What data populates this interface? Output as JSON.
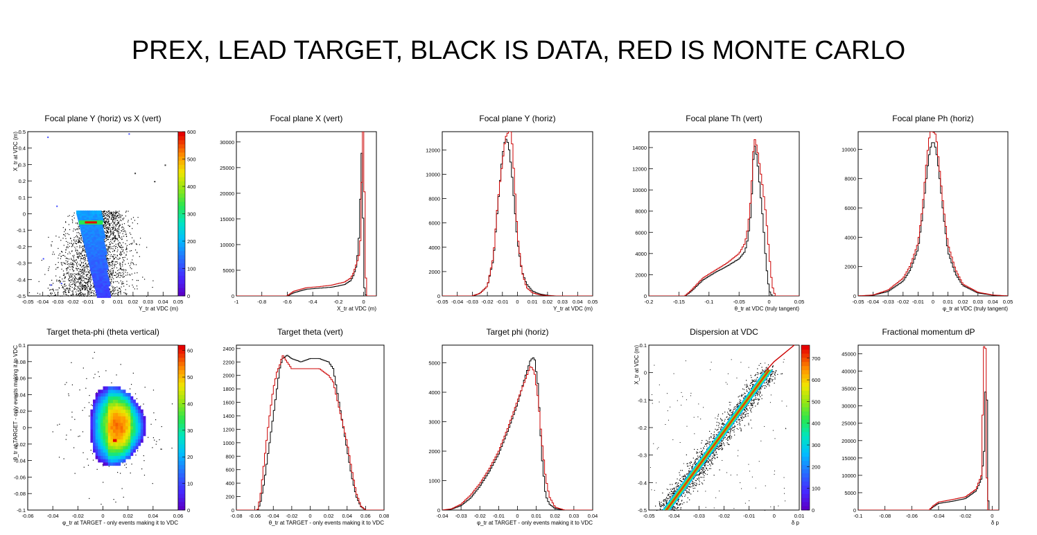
{
  "page": {
    "title": "PREX, LEAD TARGET, BLACK IS DATA, RED IS MONTE CARLO",
    "colors": {
      "data": "#000000",
      "monte_carlo": "#cc0000",
      "frame": "#000000"
    }
  },
  "chart_data": [
    {
      "id": "fp-y-vs-x",
      "type": "heatmap",
      "title": "Focal plane Y (horiz) vs X (vert)",
      "xlabel": "Y_tr at VDC (m)",
      "ylabel": "X_tr at VDC (m)",
      "xlim": [
        -0.05,
        0.05
      ],
      "ylim": [
        -0.5,
        0.5
      ],
      "xticks": [
        -0.05,
        -0.04,
        -0.03,
        -0.02,
        -0.01,
        0,
        0.01,
        0.02,
        0.03,
        0.04,
        0.05
      ],
      "yticks": [
        -0.5,
        -0.4,
        -0.3,
        -0.2,
        -0.1,
        0,
        0.1,
        0.2,
        0.3,
        0.4,
        0.5
      ],
      "zlim": [
        0,
        600
      ],
      "zticks": [
        0,
        100,
        200,
        300,
        400,
        500,
        600
      ],
      "band": [
        [
          -0.01,
          -0.05,
          0.004
        ],
        [
          -0.008,
          -0.15,
          0.005
        ],
        [
          -0.006,
          -0.25,
          0.005
        ],
        [
          -0.004,
          -0.35,
          0.005
        ],
        [
          -0.002,
          -0.45,
          0.005
        ],
        [
          0.0,
          -0.5,
          0.005
        ]
      ],
      "hotspot": [
        -0.008,
        -0.05,
        600
      ],
      "outliers": [
        [
          -0.037,
          0.47
        ],
        [
          0.017,
          0.49
        ],
        [
          0.021,
          0.25
        ],
        [
          0.034,
          0.2
        ],
        [
          0.041,
          0.3
        ],
        [
          -0.031,
          0.05
        ],
        [
          -0.035,
          -0.43
        ],
        [
          -0.028,
          -0.42
        ],
        [
          -0.04,
          -0.27
        ]
      ]
    },
    {
      "id": "fp-x",
      "type": "line",
      "title": "Focal plane X (vert)",
      "xlabel": "X_tr at VDC (m)",
      "xlim": [
        -1,
        0.1
      ],
      "ylim": [
        0,
        32000
      ],
      "xticks": [
        -1,
        -0.8,
        -0.6,
        -0.4,
        -0.2,
        0
      ],
      "yticks": [
        0,
        5000,
        10000,
        15000,
        20000,
        25000,
        30000
      ],
      "series": [
        {
          "color": "#000000",
          "x": [
            -1,
            -0.6,
            -0.55,
            -0.45,
            -0.35,
            -0.25,
            -0.15,
            -0.1,
            -0.08,
            -0.06,
            -0.05,
            -0.04,
            -0.03,
            -0.02,
            -0.01,
            0,
            0.01,
            0.02,
            0.1
          ],
          "y": [
            0,
            0,
            600,
            1300,
            1500,
            1700,
            2200,
            3000,
            4000,
            5500,
            7500,
            10000,
            15000,
            26000,
            30000,
            3000,
            800,
            0,
            0
          ]
        },
        {
          "color": "#cc0000",
          "x": [
            -1,
            -0.6,
            -0.55,
            -0.45,
            -0.35,
            -0.25,
            -0.15,
            -0.1,
            -0.08,
            -0.06,
            -0.04,
            -0.03,
            -0.02,
            -0.01,
            0,
            0.01,
            0.02,
            0.1
          ],
          "y": [
            0,
            0,
            900,
            1600,
            1800,
            2100,
            2700,
            3500,
            4500,
            6000,
            7500,
            9000,
            14000,
            32000,
            32000,
            14000,
            0,
            0
          ]
        }
      ]
    },
    {
      "id": "fp-y",
      "type": "line",
      "title": "Focal plane Y (horiz)",
      "xlabel": "Y_tr at VDC (m)",
      "xlim": [
        -0.05,
        0.05
      ],
      "ylim": [
        0,
        13500
      ],
      "xticks": [
        -0.05,
        -0.04,
        -0.03,
        -0.02,
        -0.01,
        0,
        0.01,
        0.02,
        0.03,
        0.04,
        0.05
      ],
      "yticks": [
        0,
        2000,
        4000,
        6000,
        8000,
        10000,
        12000
      ],
      "series": [
        {
          "color": "#000000",
          "x": [
            -0.05,
            -0.03,
            -0.025,
            -0.02,
            -0.016,
            -0.013,
            -0.01,
            -0.008,
            -0.006,
            -0.004,
            -0.002,
            0,
            0.003,
            0.006,
            0.01,
            0.015,
            0.02,
            0.025,
            0.05
          ],
          "y": [
            0,
            0,
            200,
            800,
            3000,
            7500,
            11500,
            13000,
            12500,
            10500,
            7500,
            4500,
            2000,
            1000,
            400,
            150,
            50,
            0,
            0
          ]
        },
        {
          "color": "#cc0000",
          "x": [
            -0.05,
            -0.03,
            -0.025,
            -0.02,
            -0.016,
            -0.013,
            -0.01,
            -0.008,
            -0.006,
            -0.004,
            -0.002,
            0,
            0.003,
            0.006,
            0.01,
            0.015,
            0.02,
            0.025,
            0.05
          ],
          "y": [
            0,
            0,
            200,
            800,
            3200,
            7800,
            11000,
            13000,
            13500,
            13500,
            9500,
            5000,
            2000,
            700,
            250,
            80,
            20,
            0,
            0
          ]
        }
      ]
    },
    {
      "id": "fp-th",
      "type": "line",
      "title": "Focal plane Th (vert)",
      "xlabel": "θ_tr at VDC (truly tangent)",
      "xlim": [
        -0.2,
        0.05
      ],
      "ylim": [
        0,
        15500
      ],
      "xticks": [
        -0.2,
        -0.15,
        -0.1,
        -0.05,
        0,
        0.05
      ],
      "yticks": [
        0,
        2000,
        4000,
        6000,
        8000,
        10000,
        12000,
        14000
      ],
      "series": [
        {
          "color": "#000000",
          "x": [
            -0.2,
            -0.14,
            -0.13,
            -0.11,
            -0.09,
            -0.07,
            -0.05,
            -0.04,
            -0.035,
            -0.03,
            -0.025,
            -0.02,
            -0.015,
            -0.01,
            -0.005,
            0,
            0.005,
            0.05
          ],
          "y": [
            0,
            0,
            400,
            1500,
            2200,
            2800,
            3500,
            4200,
            5500,
            8000,
            14500,
            13000,
            10000,
            7000,
            3000,
            500,
            0,
            0
          ]
        },
        {
          "color": "#cc0000",
          "x": [
            -0.2,
            -0.14,
            -0.13,
            -0.11,
            -0.09,
            -0.07,
            -0.05,
            -0.04,
            -0.035,
            -0.03,
            -0.025,
            -0.02,
            -0.015,
            -0.01,
            -0.005,
            0,
            0.005,
            0.01,
            0.05
          ],
          "y": [
            0,
            0,
            500,
            1700,
            2400,
            3100,
            4000,
            5000,
            6500,
            9500,
            15000,
            14000,
            12000,
            10000,
            7500,
            4000,
            1000,
            0,
            0
          ]
        }
      ]
    },
    {
      "id": "fp-ph",
      "type": "line",
      "title": "Focal plane Ph (horiz)",
      "xlabel": "φ_tr at VDC (truly tangent)",
      "xlim": [
        -0.05,
        0.05
      ],
      "ylim": [
        0,
        11200
      ],
      "xticks": [
        -0.05,
        -0.04,
        -0.03,
        -0.02,
        -0.01,
        0,
        0.01,
        0.02,
        0.03,
        0.04,
        0.05
      ],
      "yticks": [
        0,
        2000,
        4000,
        6000,
        8000,
        10000
      ],
      "series": [
        {
          "color": "#000000",
          "x": [
            -0.05,
            -0.04,
            -0.03,
            -0.02,
            -0.015,
            -0.01,
            -0.007,
            -0.004,
            -0.002,
            0,
            0.002,
            0.004,
            0.007,
            0.01,
            0.015,
            0.02,
            0.03,
            0.04,
            0.05
          ],
          "y": [
            0,
            50,
            300,
            1000,
            1800,
            3200,
            5500,
            8500,
            10000,
            10600,
            10000,
            8500,
            5500,
            3000,
            1500,
            700,
            200,
            50,
            0
          ]
        },
        {
          "color": "#cc0000",
          "x": [
            -0.05,
            -0.04,
            -0.03,
            -0.02,
            -0.015,
            -0.01,
            -0.007,
            -0.004,
            -0.002,
            0,
            0.002,
            0.004,
            0.007,
            0.01,
            0.015,
            0.02,
            0.03,
            0.04,
            0.05
          ],
          "y": [
            0,
            60,
            400,
            1200,
            2100,
            3600,
            6000,
            9500,
            11200,
            11200,
            11000,
            9000,
            6000,
            3500,
            1800,
            800,
            250,
            60,
            0
          ]
        }
      ]
    },
    {
      "id": "tg-theta-phi",
      "type": "heatmap",
      "title": "Target theta-phi (theta vertical)",
      "xlabel": "φ_tr at TARGET - only events making it to VDC",
      "ylabel": "θ_tr at TARGET - only events making it to VDC",
      "xlim": [
        -0.06,
        0.06
      ],
      "ylim": [
        -0.1,
        0.1
      ],
      "xticks": [
        -0.06,
        -0.04,
        -0.02,
        0,
        0.02,
        0.04,
        0.06
      ],
      "yticks": [
        -0.1,
        -0.08,
        -0.06,
        -0.04,
        -0.02,
        0,
        0.02,
        0.04,
        0.06,
        0.08,
        0.1
      ],
      "zlim": [
        0,
        62
      ],
      "zticks": [
        0,
        10,
        20,
        30,
        40,
        50,
        60
      ],
      "center": [
        0.005,
        0.0
      ],
      "hotspot": [
        0.008,
        -0.018,
        62
      ]
    },
    {
      "id": "tg-theta",
      "type": "line",
      "title": "Target theta (vert)",
      "xlabel": "θ_tr at TARGET - only events making it to VDC",
      "xlim": [
        -0.08,
        0.08
      ],
      "ylim": [
        0,
        2450
      ],
      "xticks": [
        -0.08,
        -0.06,
        -0.04,
        -0.02,
        0,
        0.02,
        0.04,
        0.06,
        0.08
      ],
      "yticks": [
        0,
        200,
        400,
        600,
        800,
        1000,
        1200,
        1400,
        1600,
        1800,
        2000,
        2200,
        2400
      ],
      "series": [
        {
          "color": "#000000",
          "x": [
            -0.08,
            -0.057,
            -0.054,
            -0.05,
            -0.045,
            -0.04,
            -0.036,
            -0.033,
            -0.03,
            -0.025,
            -0.02,
            -0.01,
            0,
            0.01,
            0.02,
            0.025,
            0.03,
            0.035,
            0.04,
            0.045,
            0.05,
            0.055,
            0.06,
            0.08
          ],
          "y": [
            0,
            0,
            100,
            400,
            900,
            1400,
            1800,
            2100,
            2250,
            2300,
            2250,
            2200,
            2250,
            2250,
            2200,
            2100,
            1700,
            1300,
            900,
            500,
            200,
            50,
            0,
            0
          ]
        },
        {
          "color": "#cc0000",
          "x": [
            -0.08,
            -0.057,
            -0.054,
            -0.05,
            -0.045,
            -0.04,
            -0.036,
            -0.033,
            -0.03,
            -0.025,
            -0.02,
            -0.01,
            0,
            0.01,
            0.02,
            0.025,
            0.03,
            0.035,
            0.04,
            0.045,
            0.05,
            0.055,
            0.06,
            0.08
          ],
          "y": [
            0,
            0,
            200,
            700,
            1300,
            1800,
            2050,
            2150,
            2300,
            2200,
            2100,
            2100,
            2100,
            2100,
            2000,
            1900,
            1600,
            1300,
            1000,
            600,
            250,
            60,
            0,
            0
          ]
        }
      ]
    },
    {
      "id": "tg-phi",
      "type": "line",
      "title": "Target phi (horiz)",
      "xlabel": "φ_tr at TARGET - only events making it to VDC",
      "xlim": [
        -0.04,
        0.04
      ],
      "ylim": [
        0,
        5600
      ],
      "xticks": [
        -0.04,
        -0.03,
        -0.02,
        -0.01,
        0,
        0.01,
        0.02,
        0.03,
        0.04
      ],
      "yticks": [
        0,
        1000,
        2000,
        3000,
        4000,
        5000
      ],
      "series": [
        {
          "color": "#000000",
          "x": [
            -0.04,
            -0.035,
            -0.03,
            -0.025,
            -0.02,
            -0.015,
            -0.01,
            -0.005,
            0,
            0.004,
            0.007,
            0.009,
            0.011,
            0.013,
            0.015,
            0.017,
            0.02,
            0.025,
            0.04
          ],
          "y": [
            0,
            30,
            150,
            400,
            800,
            1300,
            1900,
            2700,
            3600,
            4500,
            5100,
            5200,
            4200,
            1800,
            500,
            200,
            50,
            0,
            0
          ]
        },
        {
          "color": "#cc0000",
          "x": [
            -0.04,
            -0.035,
            -0.03,
            -0.025,
            -0.02,
            -0.015,
            -0.01,
            -0.005,
            0,
            0.004,
            0.007,
            0.009,
            0.011,
            0.013,
            0.015,
            0.017,
            0.02,
            0.025,
            0.04
          ],
          "y": [
            0,
            40,
            200,
            500,
            900,
            1400,
            2000,
            2800,
            3700,
            4400,
            4900,
            4700,
            3800,
            2300,
            1100,
            450,
            100,
            0,
            0
          ]
        }
      ]
    },
    {
      "id": "dispersion",
      "type": "heatmap",
      "title": "Dispersion at VDC",
      "xlabel": "δ p",
      "ylabel": "X_tr at VDC (m)",
      "xlim": [
        -0.05,
        0.01
      ],
      "ylim": [
        -0.5,
        0.1
      ],
      "xticks": [
        -0.05,
        -0.04,
        -0.03,
        -0.02,
        -0.01,
        0,
        0.01
      ],
      "yticks": [
        -0.5,
        -0.4,
        -0.3,
        -0.2,
        -0.1,
        0,
        0.1
      ],
      "zlim": [
        0,
        760
      ],
      "zticks": [
        0,
        100,
        200,
        300,
        400,
        500,
        600,
        700
      ],
      "line_start": [
        -0.043,
        -0.5
      ],
      "line_end": [
        -0.002,
        0.01
      ],
      "mc_curve": {
        "x": [
          -0.004,
          0.0,
          0.004,
          0.008
        ],
        "y": [
          0.0,
          0.04,
          0.07,
          0.1
        ]
      }
    },
    {
      "id": "frac-momentum",
      "type": "line",
      "title": "Fractional momentum dP",
      "xlabel": "δ p",
      "xlim": [
        -0.1,
        0.005
      ],
      "ylim": [
        0,
        47500
      ],
      "xticks": [
        -0.1,
        -0.08,
        -0.06,
        -0.04,
        -0.02,
        0
      ],
      "yticks": [
        0,
        5000,
        10000,
        15000,
        20000,
        25000,
        30000,
        35000,
        40000,
        45000
      ],
      "series": [
        {
          "color": "#000000",
          "x": [
            -0.1,
            -0.047,
            -0.044,
            -0.04,
            -0.03,
            -0.02,
            -0.012,
            -0.008,
            -0.006,
            -0.005,
            -0.004,
            -0.003,
            -0.002,
            0.005
          ],
          "y": [
            0,
            0,
            900,
            1900,
            2500,
            3300,
            5500,
            9000,
            17000,
            34000,
            34000,
            3000,
            0,
            0
          ]
        },
        {
          "color": "#cc0000",
          "x": [
            -0.1,
            -0.047,
            -0.044,
            -0.04,
            -0.03,
            -0.02,
            -0.012,
            -0.008,
            -0.006,
            -0.005,
            -0.004,
            -0.003,
            0.005
          ],
          "y": [
            0,
            0,
            1200,
            2300,
            3000,
            3800,
            6000,
            10000,
            47500,
            47500,
            10000,
            0,
            0
          ]
        }
      ]
    }
  ]
}
